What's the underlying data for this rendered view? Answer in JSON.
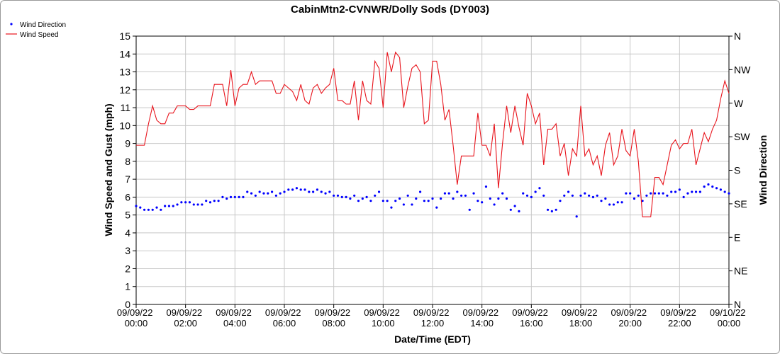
{
  "chart_data": {
    "type": "line",
    "title": "CabinMtn2-CVNWR/Dolly Sods (DY003)",
    "xlabel": "Date/Time (EDT)",
    "ylabel": "Wind Speed and Gust (mph)",
    "y2label": "Wind Direction",
    "grid": true,
    "legend": "top-left",
    "x": [
      0,
      10,
      20,
      30,
      40,
      50,
      60,
      70,
      80,
      90,
      100,
      110,
      120,
      130,
      140,
      150,
      160,
      170,
      180,
      190,
      200,
      210,
      220,
      230,
      240,
      250,
      260,
      270,
      280,
      290,
      300,
      310,
      320,
      330,
      340,
      350,
      360,
      370,
      380,
      390,
      400,
      410,
      420,
      430,
      440,
      450,
      460,
      470,
      480,
      490,
      500,
      510,
      520,
      530,
      540,
      550,
      560,
      570,
      580,
      590,
      600,
      610,
      620,
      630,
      640,
      650,
      660,
      670,
      680,
      690,
      700,
      710,
      720,
      730,
      740,
      750,
      760,
      770,
      780,
      790,
      800,
      810,
      820,
      830,
      840,
      850,
      860,
      870,
      880,
      890,
      900,
      910,
      920,
      930,
      940,
      950,
      960,
      970,
      980,
      990,
      1000,
      1010,
      1020,
      1030,
      1040,
      1050,
      1060,
      1070,
      1080,
      1090,
      1100,
      1110,
      1120,
      1130,
      1140,
      1150,
      1160,
      1170,
      1180,
      1190,
      1200,
      1210,
      1220,
      1230,
      1240,
      1250,
      1260,
      1270,
      1280,
      1290,
      1300,
      1310,
      1320,
      1330,
      1340,
      1350,
      1360,
      1370,
      1380,
      1390,
      1400,
      1410,
      1420,
      1430,
      1440
    ],
    "xlim": [
      0,
      1440
    ],
    "xticks": [
      {
        "value": 0,
        "label": "09/09/22 00:00"
      },
      {
        "value": 120,
        "label": "09/09/22 02:00"
      },
      {
        "value": 240,
        "label": "09/09/22 04:00"
      },
      {
        "value": 360,
        "label": "09/09/22 06:00"
      },
      {
        "value": 480,
        "label": "09/09/22 08:00"
      },
      {
        "value": 600,
        "label": "09/09/22 10:00"
      },
      {
        "value": 720,
        "label": "09/09/22 12:00"
      },
      {
        "value": 840,
        "label": "09/09/22 14:00"
      },
      {
        "value": 960,
        "label": "09/09/22 16:00"
      },
      {
        "value": 1080,
        "label": "09/09/22 18:00"
      },
      {
        "value": 1200,
        "label": "09/09/22 20:00"
      },
      {
        "value": 1320,
        "label": "09/09/22 22:00"
      },
      {
        "value": 1440,
        "label": "09/10/22 00:00"
      }
    ],
    "ylim": [
      0,
      15
    ],
    "yticks": [
      0,
      1,
      2,
      3,
      4,
      5,
      6,
      7,
      8,
      9,
      10,
      11,
      12,
      13,
      14,
      15
    ],
    "y2lim": [
      0,
      360
    ],
    "y2ticks": [
      {
        "value": 0,
        "label": "N"
      },
      {
        "value": 45,
        "label": "NE"
      },
      {
        "value": 90,
        "label": "E"
      },
      {
        "value": 135,
        "label": "SE"
      },
      {
        "value": 180,
        "label": "S"
      },
      {
        "value": 225,
        "label": "SW"
      },
      {
        "value": 270,
        "label": "W"
      },
      {
        "value": 315,
        "label": "NW"
      },
      {
        "value": 360,
        "label": "N"
      }
    ],
    "series": [
      {
        "name": "Wind Direction",
        "type": "scatter",
        "axis": "y2",
        "color": "#0000ff",
        "values": [
          132,
          130,
          127,
          127,
          127,
          130,
          127,
          132,
          132,
          132,
          134,
          137,
          137,
          137,
          134,
          134,
          134,
          139,
          137,
          139,
          139,
          144,
          142,
          144,
          144,
          144,
          144,
          151,
          149,
          146,
          151,
          149,
          149,
          151,
          146,
          149,
          151,
          154,
          154,
          156,
          154,
          154,
          151,
          151,
          154,
          151,
          149,
          151,
          146,
          146,
          144,
          144,
          142,
          146,
          139,
          142,
          144,
          139,
          146,
          151,
          139,
          139,
          130,
          139,
          142,
          134,
          146,
          134,
          142,
          151,
          139,
          139,
          142,
          130,
          142,
          149,
          149,
          142,
          151,
          146,
          146,
          127,
          149,
          139,
          137,
          158,
          142,
          134,
          142,
          149,
          142,
          127,
          132,
          125,
          149,
          146,
          144,
          151,
          156,
          146,
          127,
          125,
          127,
          139,
          146,
          151,
          146,
          118,
          146,
          149,
          146,
          144,
          146,
          139,
          142,
          134,
          134,
          137,
          137,
          149,
          149,
          142,
          146,
          139,
          146,
          149,
          149,
          149,
          149,
          146,
          151,
          151,
          154,
          144,
          149,
          151,
          151,
          151,
          158,
          161,
          158,
          156,
          154,
          151,
          149
        ]
      },
      {
        "name": "Wind Speed",
        "type": "line",
        "color": "#e8141c",
        "values": [
          8.9,
          8.9,
          8.9,
          10.1,
          11.1,
          10.3,
          10.1,
          10.1,
          10.7,
          10.7,
          11.1,
          11.1,
          11.1,
          10.9,
          10.9,
          11.1,
          11.1,
          11.1,
          11.1,
          12.3,
          12.3,
          12.3,
          11.1,
          13.1,
          11.1,
          12.1,
          12.3,
          12.3,
          13.0,
          12.3,
          12.5,
          12.5,
          12.5,
          12.5,
          11.8,
          11.8,
          12.3,
          12.1,
          11.9,
          11.4,
          12.3,
          11.4,
          11.2,
          12.1,
          12.3,
          11.8,
          12.1,
          12.3,
          13.2,
          11.4,
          11.4,
          11.2,
          11.2,
          12.5,
          10.3,
          12.5,
          11.4,
          11.2,
          13.6,
          13.2,
          11.0,
          14.1,
          13.0,
          14.1,
          13.8,
          11.0,
          12.2,
          13.2,
          13.4,
          13.0,
          10.1,
          10.3,
          13.6,
          13.6,
          12.3,
          10.3,
          10.9,
          8.9,
          6.7,
          8.3,
          8.3,
          8.3,
          8.3,
          10.7,
          8.9,
          8.9,
          8.3,
          10.1,
          6.5,
          9.0,
          11.1,
          9.6,
          11.1,
          9.9,
          8.9,
          11.8,
          11.1,
          10.1,
          10.7,
          7.8,
          9.8,
          9.8,
          10.1,
          8.3,
          9.0,
          7.2,
          8.7,
          8.3,
          11.1,
          8.3,
          8.7,
          7.8,
          8.3,
          7.2,
          8.9,
          9.6,
          7.8,
          8.3,
          9.8,
          8.6,
          8.3,
          9.8,
          8.0,
          4.9,
          4.9,
          4.9,
          7.1,
          7.1,
          6.7,
          7.8,
          8.9,
          9.2,
          8.7,
          9.0,
          9.0,
          9.8,
          7.8,
          8.7,
          9.6,
          9.1,
          9.8,
          10.3,
          11.5,
          12.5,
          11.8
        ]
      }
    ]
  }
}
